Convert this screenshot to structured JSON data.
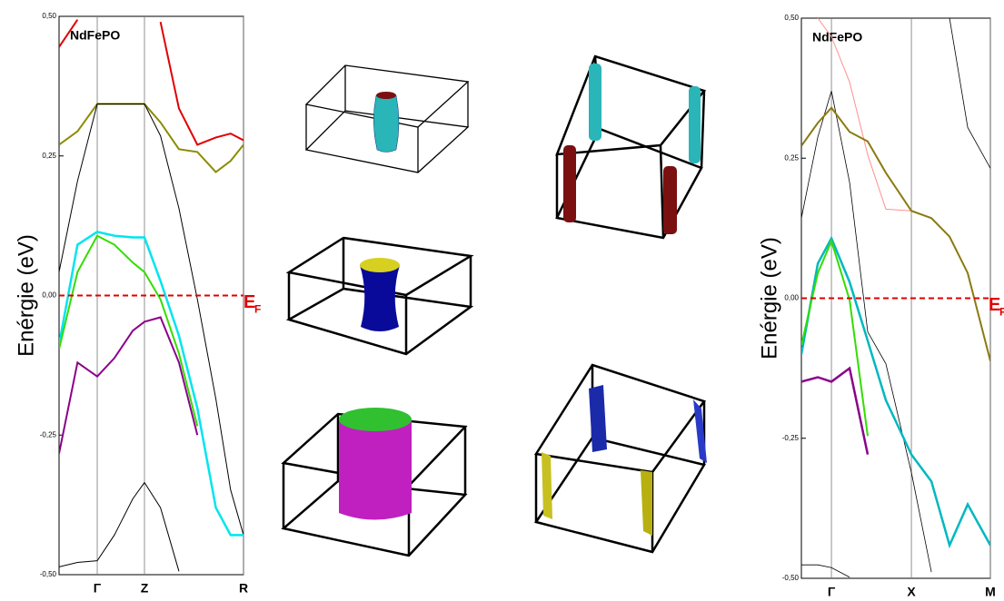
{
  "chart_data": [
    {
      "type": "line",
      "title": "NdFePO",
      "y_label": "Enérgie (eV)",
      "x": [
        0,
        0.1,
        0.207,
        0.3,
        0.4,
        0.463,
        0.55,
        0.65,
        0.75,
        0.85,
        0.93,
        1.0
      ],
      "xlim": [
        0,
        1
      ],
      "xticks": [
        {
          "value": 0.207,
          "label": "Γ"
        },
        {
          "value": 0.463,
          "label": "Z"
        },
        {
          "value": 1.0,
          "label": "R"
        }
      ],
      "ylim": [
        -0.5,
        0.5
      ],
      "yticks": [
        {
          "value": 0.5,
          "label": "0,50"
        },
        {
          "value": 0.25,
          "label": "0,25"
        },
        {
          "value": 0,
          "label": "0,00"
        },
        {
          "value": -0.25,
          "label": "-0,25"
        },
        {
          "value": -0.5,
          "label": "-0,50"
        }
      ],
      "fermi_level": 0,
      "fermi_label": {
        "main": "E",
        "sub": "F"
      },
      "fermi_color": "#e00000",
      "series": [
        {
          "color": "#e00000",
          "width": 2,
          "values": [
            0.445,
            0.494,
            null,
            null,
            null,
            null,
            0.49,
            0.335,
            0.27,
            0.283,
            0.29,
            0.278
          ]
        },
        {
          "color": "#8b8b00",
          "width": 2,
          "values": [
            0.27,
            0.294,
            0.343,
            0.343,
            0.343,
            0.343,
            0.31,
            0.262,
            0.257,
            0.221,
            0.241,
            0.27
          ]
        },
        {
          "color": "#000000",
          "width": 1,
          "values": [
            0.042,
            0.205,
            0.343,
            0.343,
            0.343,
            0.343,
            0.286,
            0.156,
            -0.007,
            -0.185,
            -0.348,
            -0.429
          ]
        },
        {
          "color": "#00e5ee",
          "width": 2.5,
          "values": [
            -0.088,
            0.091,
            0.114,
            0.107,
            0.104,
            0.104,
            0.026,
            -0.072,
            -0.202,
            -0.38,
            -0.429,
            -0.429
          ]
        },
        {
          "color": "#33dd00",
          "width": 2,
          "values": [
            -0.096,
            0.042,
            0.107,
            0.091,
            0.059,
            0.042,
            -0.007,
            -0.104,
            -0.234,
            null,
            null,
            null
          ]
        },
        {
          "color": "#8b008b",
          "width": 2,
          "values": [
            -0.283,
            -0.12,
            -0.145,
            -0.112,
            -0.063,
            -0.047,
            -0.039,
            -0.12,
            -0.25,
            null,
            null,
            null
          ]
        },
        {
          "color": "#000000",
          "width": 1,
          "values": [
            -0.486,
            -0.478,
            -0.475,
            -0.429,
            -0.364,
            -0.335,
            -0.38,
            -0.494,
            null,
            null,
            null,
            null
          ]
        }
      ]
    },
    {
      "type": "line",
      "title": "NdFePO",
      "y_label": "Enérgie (eV)",
      "x": [
        0,
        0.087,
        0.159,
        0.255,
        0.351,
        0.447,
        0.582,
        0.688,
        0.784,
        0.88,
        1.0
      ],
      "xlim": [
        0,
        1
      ],
      "xticks": [
        {
          "value": 0.159,
          "label": "Γ"
        },
        {
          "value": 0.582,
          "label": "X"
        },
        {
          "value": 1.0,
          "label": "M"
        }
      ],
      "ylim": [
        -0.5,
        0.5
      ],
      "yticks": [
        {
          "value": 0.5,
          "label": "0,50"
        },
        {
          "value": 0.25,
          "label": "0,25"
        },
        {
          "value": 0,
          "label": "0,00"
        },
        {
          "value": -0.25,
          "label": "-0,25"
        },
        {
          "value": -0.5,
          "label": "-0,50"
        }
      ],
      "fermi_level": 0,
      "fermi_label": {
        "main": "E",
        "sub": "F"
      },
      "fermi_color": "#e00000",
      "series": [
        {
          "color": "#ff9090",
          "width": 1,
          "values": [
            null,
            0.5,
            0.467,
            0.386,
            0.256,
            0.159,
            0.156,
            null,
            null,
            null,
            null
          ]
        },
        {
          "color": "#000000",
          "width": 0.8,
          "values": [
            null,
            null,
            null,
            null,
            null,
            null,
            null,
            null,
            0.5,
            0.305,
            0.232
          ]
        },
        {
          "color": "#000000",
          "width": 0.8,
          "values": [
            0.143,
            0.288,
            0.37,
            0.207,
            -0.06,
            -0.117,
            -0.311,
            -0.489,
            null,
            null,
            null
          ]
        },
        {
          "color": "#8b7a10",
          "width": 2,
          "values": [
            0.272,
            0.313,
            0.34,
            0.297,
            0.28,
            0.224,
            0.156,
            0.143,
            0.11,
            0.045,
            -0.112
          ]
        },
        {
          "color": "#00b8c0",
          "width": 2.5,
          "values": [
            -0.1,
            0.062,
            0.107,
            0.029,
            -0.076,
            -0.182,
            -0.279,
            -0.327,
            -0.441,
            -0.368,
            -0.441
          ]
        },
        {
          "color": "#33dd00",
          "width": 2,
          "values": [
            -0.084,
            0.045,
            0.102,
            -0.003,
            -0.246,
            null,
            null,
            null,
            null,
            null,
            null
          ]
        },
        {
          "color": "#8b008b",
          "width": 2.5,
          "values": [
            -0.149,
            -0.141,
            -0.149,
            -0.125,
            -0.279,
            null,
            null,
            null,
            null,
            null,
            null
          ]
        },
        {
          "color": "#000000",
          "width": 0.8,
          "values": [
            -0.476,
            -0.476,
            -0.481,
            -0.498,
            null,
            null,
            null,
            null,
            null,
            null,
            null
          ]
        }
      ]
    }
  ]
}
